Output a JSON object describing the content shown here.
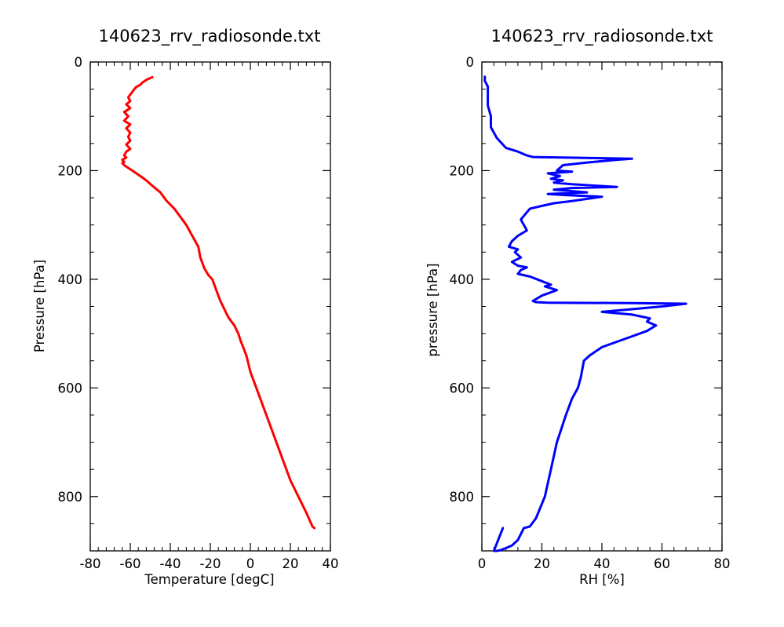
{
  "colors": {
    "temperature": "#ff0000",
    "rh": "#0000ff"
  },
  "chart_data": [
    {
      "type": "line",
      "title": "140623_rrv_radiosonde.txt",
      "xlabel": "Temperature [degC]",
      "ylabel": "Pressure [hPa]",
      "xlim": [
        -80,
        40
      ],
      "ylim": [
        900,
        0
      ],
      "y_inverted": true,
      "grid": false,
      "xticks": [
        "-80",
        "-60",
        "-40",
        "-20",
        "0",
        "20",
        "40"
      ],
      "yticks": [
        "0",
        "200",
        "400",
        "600",
        "800"
      ],
      "series": [
        {
          "x": [
            -49,
            -52,
            -54,
            -55,
            -57,
            -58,
            -59,
            -60,
            -61,
            -60,
            -62,
            -60,
            -63,
            -61,
            -63,
            -60,
            -62,
            -60,
            -61,
            -60,
            -62,
            -60,
            -62,
            -63,
            -62,
            -64,
            -63,
            -64,
            -63,
            -61,
            -59,
            -57,
            -55,
            -52,
            -49,
            -45,
            -42,
            -38,
            -35,
            -32,
            -29,
            -26,
            -25,
            -23,
            -21,
            -19,
            -18,
            -17,
            -15,
            -13,
            -11,
            -8,
            -6,
            -5,
            -2,
            0,
            4,
            8,
            12,
            16,
            20,
            24,
            28,
            31,
            32
          ],
          "y": [
            28,
            33,
            38,
            42,
            46,
            50,
            55,
            60,
            65,
            72,
            78,
            85,
            92,
            100,
            108,
            115,
            122,
            130,
            138,
            145,
            152,
            160,
            165,
            172,
            176,
            180,
            184,
            186,
            190,
            195,
            200,
            205,
            210,
            218,
            228,
            240,
            255,
            270,
            285,
            300,
            320,
            340,
            360,
            380,
            392,
            400,
            410,
            420,
            440,
            455,
            470,
            485,
            500,
            512,
            540,
            570,
            610,
            650,
            690,
            730,
            770,
            800,
            830,
            855,
            858
          ]
        }
      ]
    },
    {
      "type": "line",
      "title": "140623_rrv_radiosonde.txt",
      "xlabel": "RH [%]",
      "ylabel": "pressure [hPa]",
      "xlim": [
        0,
        80
      ],
      "ylim": [
        900,
        0
      ],
      "y_inverted": true,
      "grid": false,
      "xticks": [
        "0",
        "20",
        "40",
        "60",
        "80"
      ],
      "yticks": [
        "0",
        "200",
        "400",
        "600",
        "800"
      ],
      "series": [
        {
          "x": [
            1,
            1,
            2,
            2,
            2,
            3,
            3,
            5,
            8,
            12,
            15,
            17,
            50,
            45,
            35,
            27,
            25,
            30,
            22,
            26,
            23,
            27,
            24,
            30,
            45,
            30,
            24,
            35,
            22,
            28,
            40,
            30,
            24,
            20,
            16,
            13,
            14,
            15,
            12,
            10,
            9,
            12,
            11,
            13,
            10,
            12,
            15,
            13,
            12,
            16,
            23,
            21,
            25,
            20,
            17,
            18,
            22,
            50,
            68,
            60,
            50,
            40,
            50,
            56,
            55,
            58,
            55,
            50,
            45,
            40,
            36,
            34,
            33,
            32,
            30,
            28,
            25,
            23,
            21,
            18,
            16,
            14,
            12,
            10,
            8,
            7,
            6,
            5,
            4,
            7
          ],
          "y": [
            27,
            35,
            45,
            60,
            80,
            100,
            120,
            140,
            158,
            165,
            172,
            175,
            178,
            180,
            185,
            190,
            200,
            202,
            205,
            210,
            215,
            218,
            222,
            225,
            230,
            232,
            235,
            240,
            243,
            245,
            248,
            256,
            260,
            265,
            270,
            290,
            300,
            310,
            320,
            330,
            340,
            345,
            350,
            360,
            368,
            375,
            378,
            383,
            390,
            395,
            410,
            413,
            420,
            430,
            440,
            442,
            443,
            444,
            445,
            450,
            455,
            460,
            465,
            472,
            478,
            485,
            495,
            505,
            515,
            525,
            540,
            550,
            580,
            600,
            620,
            650,
            700,
            750,
            800,
            840,
            855,
            858,
            880,
            890,
            895,
            897,
            899,
            900,
            900,
            858
          ]
        }
      ]
    }
  ]
}
